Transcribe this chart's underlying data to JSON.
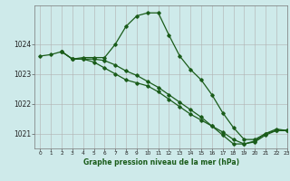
{
  "title": "Graphe pression niveau de la mer (hPa)",
  "bg_color": "#ceeaea",
  "grid_color": "#b0b0b0",
  "line_color": "#1a5c1a",
  "xlim": [
    -0.5,
    23
  ],
  "ylim": [
    1020.5,
    1025.3
  ],
  "yticks": [
    1021,
    1022,
    1023,
    1024
  ],
  "xticks": [
    0,
    1,
    2,
    3,
    4,
    5,
    6,
    7,
    8,
    9,
    10,
    11,
    12,
    13,
    14,
    15,
    16,
    17,
    18,
    19,
    20,
    21,
    22,
    23
  ],
  "series1_x": [
    0,
    1,
    2,
    3,
    4,
    5,
    6,
    7,
    8,
    9,
    10,
    11,
    12,
    13,
    14,
    15,
    16,
    17,
    18,
    19,
    20,
    21,
    22,
    23
  ],
  "series1_y": [
    1023.6,
    1023.65,
    1023.75,
    1023.5,
    1023.55,
    1023.55,
    1023.55,
    1024.0,
    1024.6,
    1024.95,
    1025.05,
    1025.05,
    1024.3,
    1023.6,
    1023.15,
    1022.8,
    1022.3,
    1021.7,
    1021.2,
    1020.8,
    1020.8,
    1021.0,
    1021.1,
    1021.1
  ],
  "series2_x": [
    2,
    3,
    4,
    5,
    6,
    7,
    8,
    9,
    10,
    11,
    12,
    13,
    14,
    15,
    16,
    17,
    18,
    19,
    20,
    21,
    22,
    23
  ],
  "series2_y": [
    1023.75,
    1023.5,
    1023.5,
    1023.5,
    1023.45,
    1023.3,
    1023.1,
    1022.95,
    1022.75,
    1022.55,
    1022.3,
    1022.05,
    1021.8,
    1021.55,
    1021.25,
    1020.95,
    1020.65,
    1020.65,
    1020.75,
    1021.0,
    1021.15,
    1021.1
  ],
  "series3_x": [
    2,
    3,
    4,
    5,
    6,
    7,
    8,
    9,
    10,
    11,
    12,
    13,
    14,
    15,
    16,
    17,
    18,
    19,
    20,
    21,
    22,
    23
  ],
  "series3_y": [
    1023.75,
    1023.5,
    1023.5,
    1023.4,
    1023.2,
    1023.0,
    1022.8,
    1022.7,
    1022.6,
    1022.4,
    1022.15,
    1021.9,
    1021.65,
    1021.45,
    1021.25,
    1021.05,
    1020.8,
    1020.65,
    1020.72,
    1020.95,
    1021.1,
    1021.1
  ]
}
